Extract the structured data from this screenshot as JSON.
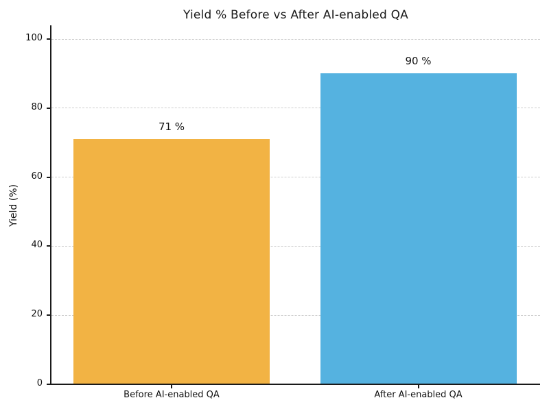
{
  "chart_data": {
    "type": "bar",
    "title": "Yield % Before vs After AI-enabled QA",
    "xlabel": "",
    "ylabel": "Yield (%)",
    "categories": [
      "Before AI-enabled QA",
      "After AI-enabled QA"
    ],
    "values": [
      71,
      90
    ],
    "value_labels": [
      "71 %",
      "90 %"
    ],
    "bar_colors": [
      "#F2B344",
      "#55B2E0"
    ],
    "yticks": [
      0,
      20,
      40,
      60,
      80,
      100
    ],
    "ylim": [
      0,
      104
    ],
    "grid": "horizontal dashed gridlines at y ticks",
    "legend_position": "none"
  },
  "colors": {
    "grid": "#CCCCCC",
    "spine": "#1A1A1A",
    "text": "#111111",
    "background": "#FFFFFF"
  }
}
